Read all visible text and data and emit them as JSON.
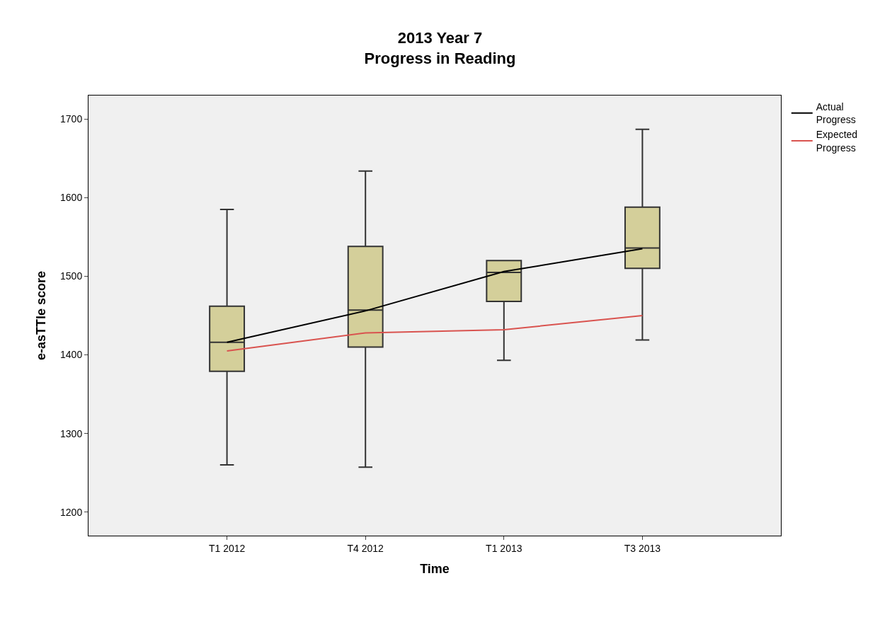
{
  "chart_data": {
    "type": "box",
    "title": "2013 Year 7\nProgress in Reading",
    "xlabel": "Time",
    "ylabel": "e-asTTle score",
    "categories": [
      "T1 2012",
      "T4 2012",
      "T1 2013",
      "T3 2013"
    ],
    "color": "#d4cf9a",
    "boxes": [
      {
        "low": 1260,
        "q1": 1379,
        "median": 1416,
        "q3": 1462,
        "high": 1585
      },
      {
        "low": 1257,
        "q1": 1410,
        "median": 1457,
        "q3": 1538,
        "high": 1634
      },
      {
        "low": 1393,
        "q1": 1468,
        "median": 1505,
        "q3": 1520,
        "high": 1520
      },
      {
        "low": 1419,
        "q1": 1510,
        "median": 1536,
        "q3": 1588,
        "high": 1687
      }
    ],
    "series": [
      {
        "name": "Actual Progress",
        "type": "line",
        "color": "#000000",
        "values": [
          1416,
          1456,
          1506,
          1535
        ]
      },
      {
        "name": "Expected Progress",
        "type": "line",
        "color": "#d9534f",
        "values": [
          1405,
          1428,
          1432,
          1450
        ]
      }
    ],
    "ylim": [
      1170,
      1730
    ],
    "yticks": [
      1200,
      1300,
      1400,
      1500,
      1600,
      1700
    ],
    "grid": false,
    "legend": "top right",
    "marker": "none"
  }
}
